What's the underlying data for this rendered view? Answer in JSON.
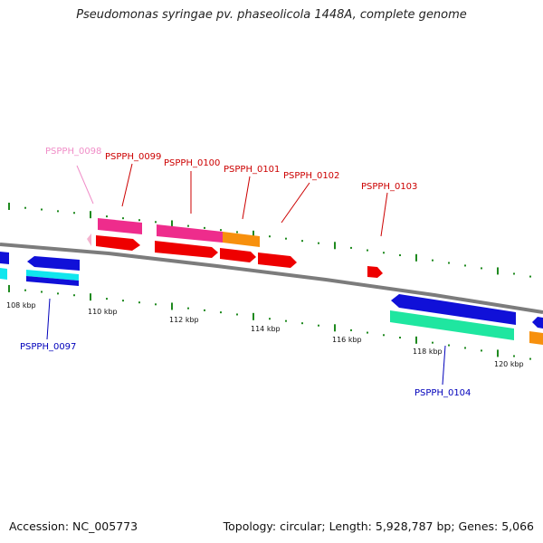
{
  "title": "Pseudomonas syringae pv. phaseolicola 1448A, complete genome",
  "footer": {
    "accession": "Accession: NC_005773",
    "topology": "Topology: circular; Length: 5,928,787 bp; Genes: 5,066"
  },
  "colors": {
    "backbone": "#7c7c7c",
    "tick": "#1f8a1f",
    "forward_red": "#ee0000",
    "forward_pink": "#ee2c8c",
    "forward_orange": "#f7900d",
    "reverse_blue": "#1010d8",
    "reverse_cyan": "#10e6ee",
    "reverse_teal": "#1fe6a0",
    "label_red": "#cc0000",
    "label_blue": "#0000bb",
    "label_pink": "#f08ec8"
  },
  "scale_labels": [
    "108 kbp",
    "110 kbp",
    "112 kbp",
    "114 kbp",
    "116 kbp",
    "118 kbp",
    "120 kbp"
  ],
  "gene_labels": [
    "PSPPH_0098",
    "PSPPH_0099",
    "PSPPH_0100",
    "PSPPH_0101",
    "PSPPH_0102",
    "PSPPH_0103",
    "PSPPH_0097",
    "PSPPH_0104"
  ]
}
